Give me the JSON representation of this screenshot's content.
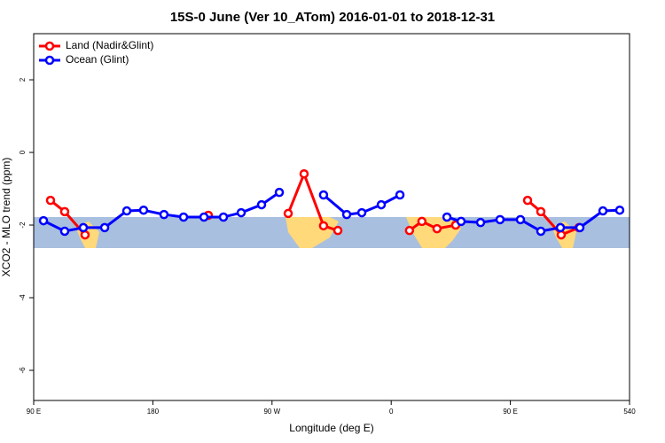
{
  "chart_data": {
    "type": "line",
    "title": "15S-0 June (Ver 10_ATom)   2016-01-01 to 2018-12-31",
    "xlabel": "Longitude (deg E)",
    "ylabel": "XCO2 - MLO trend (ppm)",
    "xlim": [
      90,
      540
    ],
    "ylim": [
      -6.83,
      3.27
    ],
    "xticks": [
      {
        "value": 90,
        "label": "90 E"
      },
      180,
      {
        "value": 270,
        "label": "90 W"
      },
      {
        "value": 360,
        "label": "0"
      },
      {
        "value": 450,
        "label": "90 E"
      },
      540
    ],
    "yticks": [
      2,
      0,
      -2,
      -4,
      -6
    ],
    "legend": "top-left",
    "series": [
      {
        "name": "Land (Nadir&Glint)",
        "color": "#ff0000",
        "x": [
          102.7,
          113.4,
          128.8,
          null,
          221.9,
          null,
          282.2,
          294.2,
          308.9,
          319.7,
          null,
          373.8,
          383.2,
          394.6,
          408.7,
          null,
          463.0,
          473.0,
          488.4,
          501.8
        ],
        "values": [
          -1.32,
          -1.63,
          -2.27,
          null,
          -1.73,
          null,
          -1.68,
          -0.59,
          -2.02,
          -2.15,
          null,
          -2.15,
          -1.9,
          -2.1,
          -2.0,
          null,
          -1.32,
          -1.63,
          -2.27,
          -2.07
        ]
      },
      {
        "name": "Ocean (Glint)",
        "color": "#0000ff",
        "x": [
          97.4,
          113.4,
          127.5,
          143.6,
          160.3,
          173.0,
          188.4,
          203.2,
          218.6,
          233.3,
          246.7,
          262.1,
          275.5,
          null,
          308.9,
          326.4,
          337.8,
          352.5,
          366.6,
          null,
          402.1,
          412.8,
          427.5,
          442.2,
          457.6,
          473.0,
          487.8,
          502.5,
          519.9,
          532.6
        ],
        "values": [
          -1.88,
          -2.17,
          -2.07,
          -2.07,
          -1.61,
          -1.59,
          -1.71,
          -1.78,
          -1.78,
          -1.78,
          -1.66,
          -1.44,
          -1.1,
          null,
          -1.17,
          -1.71,
          -1.66,
          -1.44,
          -1.17,
          null,
          -1.78,
          -1.9,
          -1.93,
          -1.85,
          -1.85,
          -2.17,
          -2.07,
          -2.07,
          -1.61,
          -1.59
        ]
      }
    ]
  }
}
